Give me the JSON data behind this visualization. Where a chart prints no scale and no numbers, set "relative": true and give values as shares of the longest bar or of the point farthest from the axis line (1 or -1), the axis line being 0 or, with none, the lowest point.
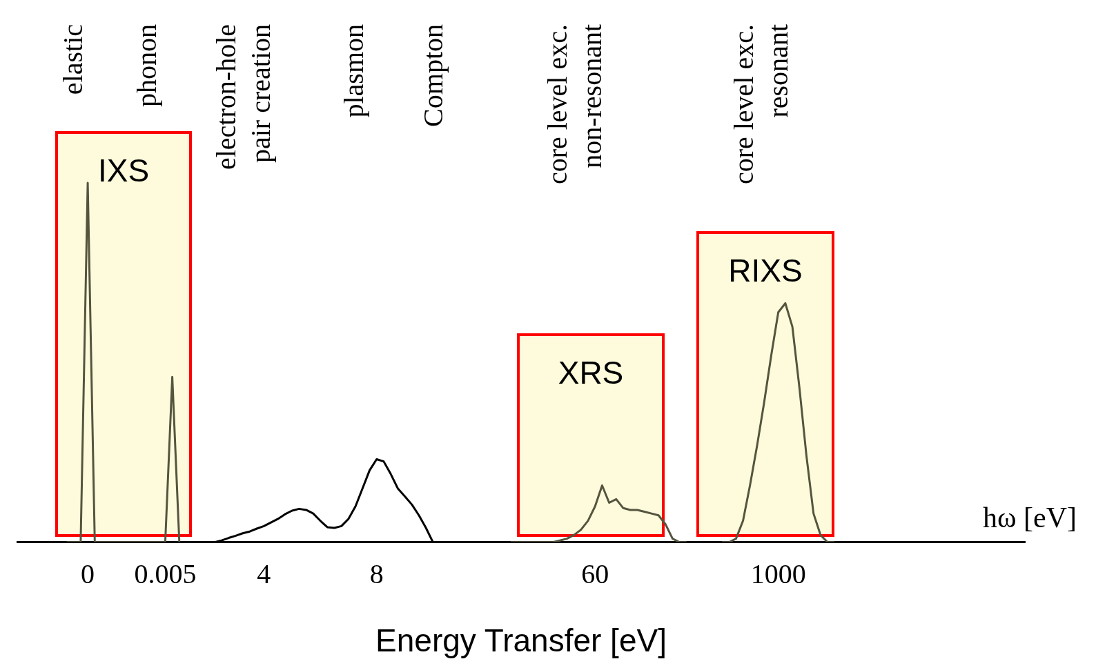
{
  "chart_data": {
    "type": "line",
    "relative": true,
    "xlabel": "Energy Transfer [eV]",
    "categories": [
      null,
      null,
      null,
      null,
      null,
      null,
      null,
      null,
      null,
      null,
      "0",
      null,
      null,
      null,
      null,
      null,
      null,
      null,
      null,
      null,
      null,
      "0.005",
      null,
      null,
      null,
      null,
      null,
      null,
      null,
      null,
      null,
      null,
      null,
      null,
      null,
      "4",
      null,
      null,
      null,
      null,
      null,
      null,
      null,
      null,
      null,
      null,
      null,
      null,
      null,
      null,
      null,
      "8",
      null,
      null,
      null,
      null,
      null,
      null,
      null,
      null,
      null,
      null,
      null,
      null,
      null,
      null,
      null,
      null,
      null,
      null,
      null,
      null,
      null,
      null,
      null,
      null,
      null,
      null,
      null,
      null,
      null,
      null,
      "60",
      null,
      null,
      null,
      null,
      null,
      null,
      null,
      null,
      null,
      null,
      null,
      null,
      null,
      null,
      null,
      null,
      null,
      null,
      null,
      null,
      null,
      null,
      null,
      null,
      null,
      "1000",
      null,
      null,
      null,
      null,
      null,
      null,
      null,
      null,
      null,
      null,
      null,
      null,
      null,
      null,
      null,
      null,
      null,
      null,
      null,
      null,
      null,
      null,
      null,
      null,
      null,
      null,
      null,
      null,
      null,
      null,
      null,
      null,
      null,
      null,
      null
    ],
    "series": [
      {
        "color": "#55553f",
        "values": [
          null,
          null,
          null,
          null,
          null,
          null,
          null,
          0,
          0,
          0,
          1,
          0,
          0,
          0,
          0,
          0,
          0,
          0,
          0,
          0,
          0,
          0,
          0.46,
          0,
          null,
          null,
          null,
          null,
          null,
          null,
          null,
          null,
          null,
          null,
          null,
          null,
          null,
          null,
          null,
          null,
          null,
          null,
          null,
          null,
          null,
          null,
          null,
          null,
          null,
          null,
          null,
          null,
          null,
          null,
          null,
          null,
          null,
          null,
          null,
          null,
          null,
          null,
          null,
          null,
          null,
          null,
          null,
          null,
          null,
          null,
          null,
          null,
          null,
          null,
          null,
          null,
          null,
          null,
          null,
          null,
          null,
          null,
          null,
          null,
          null,
          null,
          null,
          null,
          null,
          null,
          null,
          null,
          null,
          null,
          null,
          null,
          null,
          null,
          null,
          null,
          null,
          null,
          null,
          null,
          null,
          null,
          null,
          null,
          null,
          null,
          null,
          null,
          null,
          null,
          null,
          null,
          null,
          null,
          null,
          null,
          null,
          null,
          null,
          null,
          null,
          null,
          null,
          null,
          null,
          null,
          null,
          null,
          null,
          null,
          null,
          null,
          null,
          null,
          null,
          null,
          null,
          null,
          null,
          null
        ]
      },
      {
        "color": "#000000",
        "values": [
          null,
          null,
          null,
          null,
          null,
          null,
          null,
          null,
          null,
          null,
          null,
          null,
          null,
          null,
          null,
          null,
          null,
          null,
          null,
          null,
          null,
          null,
          null,
          null,
          null,
          null,
          null,
          null,
          0,
          0.005,
          0.012,
          0.018,
          0.025,
          0.03,
          0.038,
          0.045,
          0.055,
          0.065,
          0.078,
          0.088,
          0.093,
          0.09,
          0.08,
          0.06,
          0.042,
          0.04,
          0.045,
          0.065,
          0.1,
          0.15,
          0.2,
          0.231,
          0.225,
          0.19,
          0.15,
          0.128,
          0.105,
          0.075,
          0.04,
          0,
          0,
          0,
          0,
          0,
          null,
          null,
          null,
          null,
          null,
          null,
          null,
          null,
          null,
          null,
          null,
          null,
          null,
          null,
          null,
          null,
          null,
          null,
          null,
          null,
          null,
          null,
          null,
          null,
          null,
          null,
          null,
          null,
          null,
          null,
          null,
          null,
          null,
          null,
          null,
          null,
          null,
          null,
          null,
          null,
          null,
          null,
          null,
          null,
          null,
          null,
          null,
          null,
          null,
          null,
          null,
          null,
          null,
          null,
          null,
          null,
          null,
          null,
          null,
          null,
          null,
          null,
          null,
          null,
          null,
          null,
          null,
          null,
          null,
          null,
          null,
          null,
          null,
          null,
          null,
          null,
          null,
          null,
          null,
          null
        ]
      },
      {
        "color": "#55553f",
        "values": [
          null,
          null,
          null,
          null,
          null,
          null,
          null,
          null,
          null,
          null,
          null,
          null,
          null,
          null,
          null,
          null,
          null,
          null,
          null,
          null,
          null,
          null,
          null,
          null,
          null,
          null,
          null,
          null,
          null,
          null,
          null,
          null,
          null,
          null,
          null,
          null,
          null,
          null,
          null,
          null,
          null,
          null,
          null,
          null,
          null,
          null,
          null,
          null,
          null,
          null,
          null,
          null,
          null,
          null,
          null,
          null,
          null,
          null,
          null,
          null,
          null,
          null,
          null,
          null,
          null,
          null,
          null,
          null,
          null,
          null,
          0,
          0,
          0,
          0,
          0,
          0,
          0,
          0.005,
          0.01,
          0.02,
          0.035,
          0.06,
          0.1,
          0.158,
          0.11,
          0.12,
          0.095,
          0.09,
          0.09,
          0.085,
          0.08,
          0.075,
          0.05,
          0.01,
          0,
          0,
          null,
          null,
          null,
          null,
          null,
          null,
          null,
          null,
          null,
          null,
          null,
          null,
          null,
          null,
          null,
          null,
          null,
          null,
          null,
          null,
          null,
          null,
          null,
          null,
          null,
          null,
          null,
          null,
          null,
          null,
          null,
          null,
          null,
          null,
          null,
          null,
          null,
          null,
          null,
          null,
          null,
          null,
          null,
          null,
          null,
          null,
          null,
          null
        ]
      },
      {
        "color": "#55553f",
        "values": [
          null,
          null,
          null,
          null,
          null,
          null,
          null,
          null,
          null,
          null,
          null,
          null,
          null,
          null,
          null,
          null,
          null,
          null,
          null,
          null,
          null,
          null,
          null,
          null,
          null,
          null,
          null,
          null,
          null,
          null,
          null,
          null,
          null,
          null,
          null,
          null,
          null,
          null,
          null,
          null,
          null,
          null,
          null,
          null,
          null,
          null,
          null,
          null,
          null,
          null,
          null,
          null,
          null,
          null,
          null,
          null,
          null,
          null,
          null,
          null,
          null,
          null,
          null,
          null,
          null,
          null,
          null,
          null,
          null,
          null,
          null,
          null,
          null,
          null,
          null,
          null,
          null,
          null,
          null,
          null,
          null,
          null,
          null,
          null,
          null,
          null,
          null,
          null,
          null,
          null,
          null,
          null,
          null,
          null,
          null,
          null,
          null,
          null,
          null,
          null,
          0,
          0,
          0.01,
          0.06,
          0.16,
          0.27,
          0.39,
          0.52,
          0.64,
          0.665,
          0.6,
          0.43,
          0.24,
          0.08,
          0.02,
          0,
          0,
          null,
          null,
          null,
          null,
          null,
          null,
          null,
          null,
          null,
          null,
          null,
          null,
          null,
          null,
          null,
          null,
          null,
          null,
          null,
          null,
          null,
          null,
          null,
          null,
          null,
          null,
          null
        ]
      }
    ],
    "annotations": [
      "elastic",
      "phonon",
      "electron-hole\npair creation",
      "plasmon",
      "Compton",
      "core level exc.\nnon-resonant",
      "core level exc.\nresonant",
      "IXS",
      "XRS",
      "RIXS",
      "hω [eV]"
    ],
    "grid": false,
    "legend": false,
    "line_style": "solid",
    "marker": "none"
  }
}
